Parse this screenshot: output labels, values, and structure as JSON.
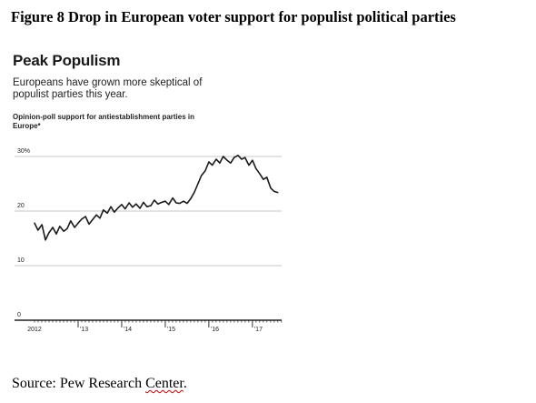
{
  "figure_title": "Figure 8 Drop in European voter support for populist political parties",
  "source": {
    "prefix": "Source: Pew Research ",
    "underlined": "Center",
    "suffix": "."
  },
  "chart_data": {
    "type": "line",
    "title": "Peak Populism",
    "subtitle": "Europeans have grown more skeptical of populist parties this year.",
    "ylabel": "Opinion-poll support for antiestablishment parties in Europe*",
    "y_ticks": [
      {
        "value": 30,
        "label": "30%"
      },
      {
        "value": 20,
        "label": "20"
      },
      {
        "value": 10,
        "label": "10"
      },
      {
        "value": 0,
        "label": "0"
      }
    ],
    "ylim": [
      0,
      30
    ],
    "x_range": [
      2012.0,
      2017.67
    ],
    "x_ticks": [
      {
        "value": 2012.0,
        "label": "2012"
      },
      {
        "value": 2013.0,
        "label": "'13"
      },
      {
        "value": 2014.0,
        "label": "'14"
      },
      {
        "value": 2015.0,
        "label": "'15"
      },
      {
        "value": 2016.0,
        "label": "'16"
      },
      {
        "value": 2017.0,
        "label": "'17"
      }
    ],
    "grid": true,
    "line_color": "#1a1a1a",
    "series": [
      {
        "x": [
          2012.0,
          2012.08,
          2012.17,
          2012.25,
          2012.33,
          2012.42,
          2012.5,
          2012.58,
          2012.67,
          2012.75,
          2012.83,
          2012.92,
          2013.0,
          2013.08,
          2013.17,
          2013.25,
          2013.33,
          2013.42,
          2013.5,
          2013.58,
          2013.67,
          2013.75,
          2013.83,
          2013.92,
          2014.0,
          2014.08,
          2014.17,
          2014.25,
          2014.33,
          2014.42,
          2014.5,
          2014.58,
          2014.67,
          2014.75,
          2014.83,
          2014.92,
          2015.0,
          2015.08,
          2015.17,
          2015.25,
          2015.33,
          2015.42,
          2015.5,
          2015.58,
          2015.67,
          2015.75,
          2015.83,
          2015.92,
          2016.0,
          2016.08,
          2016.17,
          2016.25,
          2016.33,
          2016.42,
          2016.5,
          2016.58,
          2016.67,
          2016.75,
          2016.83,
          2016.92,
          2017.0,
          2017.08,
          2017.17,
          2017.25,
          2017.33,
          2017.42,
          2017.5,
          2017.58
        ],
        "values": [
          17.8,
          16.5,
          17.5,
          14.7,
          16.0,
          17.0,
          15.8,
          17.2,
          16.3,
          16.8,
          18.2,
          17.0,
          17.8,
          18.5,
          19.0,
          17.6,
          18.4,
          19.3,
          18.7,
          20.2,
          19.6,
          20.8,
          19.8,
          20.6,
          21.2,
          20.4,
          21.5,
          20.7,
          21.3,
          20.5,
          21.6,
          20.8,
          21.0,
          22.0,
          21.3,
          21.6,
          21.8,
          21.2,
          22.4,
          21.5,
          21.4,
          21.8,
          21.4,
          22.2,
          23.5,
          25.0,
          26.5,
          27.4,
          29.0,
          28.4,
          29.5,
          28.8,
          30.0,
          29.3,
          28.8,
          29.8,
          30.2,
          29.5,
          29.8,
          28.4,
          29.3,
          27.8,
          26.8,
          25.8,
          26.2,
          24.2,
          23.6,
          23.4
        ]
      }
    ]
  }
}
